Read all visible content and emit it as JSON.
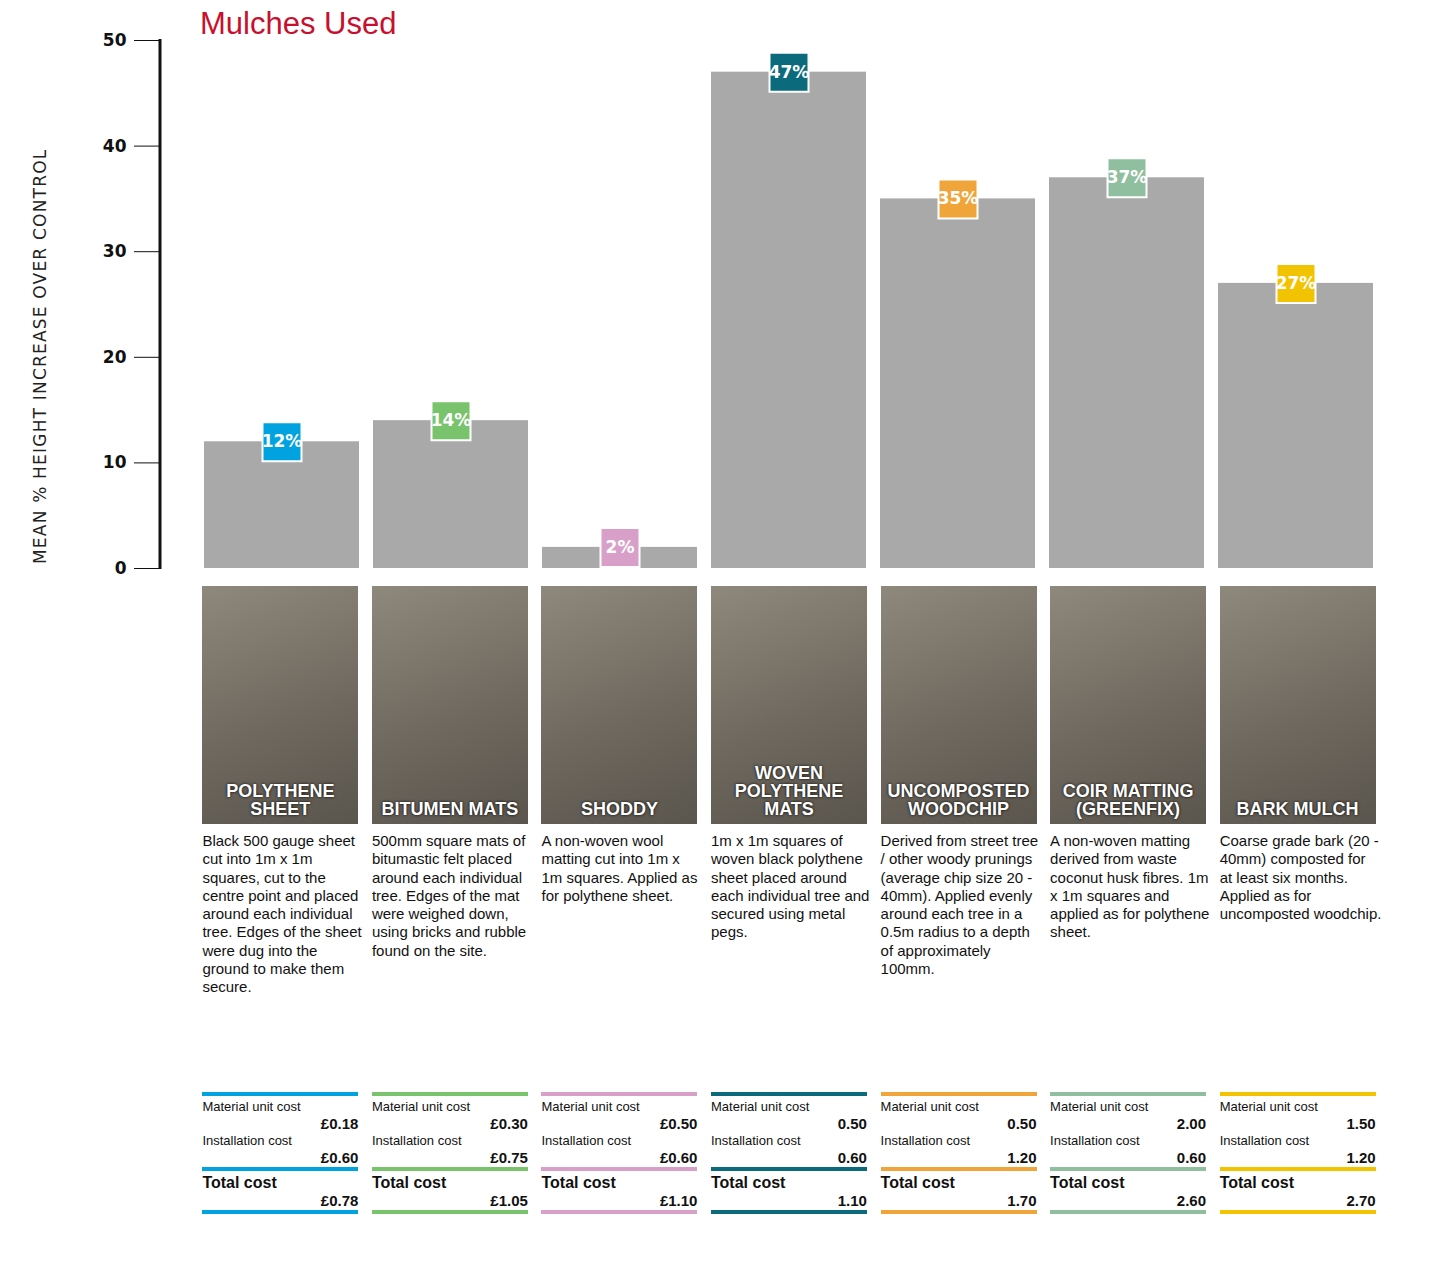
{
  "chart_data": {
    "type": "bar",
    "title": "Mulches Used",
    "ylabel": "MEAN % HEIGHT INCREASE OVER CONTROL",
    "categories": [
      "POLYTHENE SHEET",
      "BITUMEN MATS",
      "SHODDY",
      "WOVEN POLYTHENE MATS",
      "UNCOMPOSTED WOODCHIP",
      "COIR MATTING (GREENFIX)",
      "BARK MULCH"
    ],
    "values": [
      12,
      14,
      2,
      47,
      35,
      37,
      27
    ],
    "value_labels": [
      "12%",
      "14%",
      "2%",
      "47%",
      "35%",
      "37%",
      "27%"
    ],
    "data_labels": true,
    "color": "#a9a9a9",
    "colors": [
      "#00a3e0",
      "#78c36b",
      "#d8a0c8",
      "#0b6b7d",
      "#f0a53a",
      "#8fbf9f",
      "#f2c300"
    ],
    "ylim": [
      0,
      50
    ],
    "yticks": [
      0,
      10,
      20,
      30,
      40,
      50
    ],
    "tick_labels": "y",
    "descriptions": [
      "Black 500 gauge sheet cut into 1m x 1m squares, cut to the centre point and placed around each individual tree. Edges of the sheet were dug into the ground to make them secure.",
      "500mm square mats of bitumastic felt placed around each individual tree. Edges of the mat were weighed down, using bricks and rubble found on the site.",
      "A non-woven wool matting cut into 1m x 1m squares. Applied as for polythene sheet.",
      "1m x 1m squares of woven black polythene sheet placed around each individual tree and secured using metal pegs.",
      "Derived from street tree / other woody prunings (average chip size 20 - 40mm). Applied evenly around each tree in a 0.5m radius to a depth of approximately 100mm.",
      "A non-woven matting derived from waste coconut husk fibres. 1m x 1m squares and applied as for polythene sheet.",
      "Coarse grade bark (20 - 40mm) composted for at least six months. Applied as for uncomposted woodchip."
    ],
    "cost_labels": [
      "Material unit cost",
      "Installation cost",
      "Total cost"
    ],
    "costs": [
      [
        "£0.18",
        "£0.60",
        "£0.78"
      ],
      [
        "£0.30",
        "£0.75",
        "£1.05"
      ],
      [
        "£0.50",
        "£0.60",
        "£1.10"
      ],
      [
        "0.50",
        "0.60",
        "1.10"
      ],
      [
        "0.50",
        "1.20",
        "1.70"
      ],
      [
        "2.00",
        "0.60",
        "2.60"
      ],
      [
        "1.50",
        "1.20",
        "2.70"
      ]
    ]
  }
}
